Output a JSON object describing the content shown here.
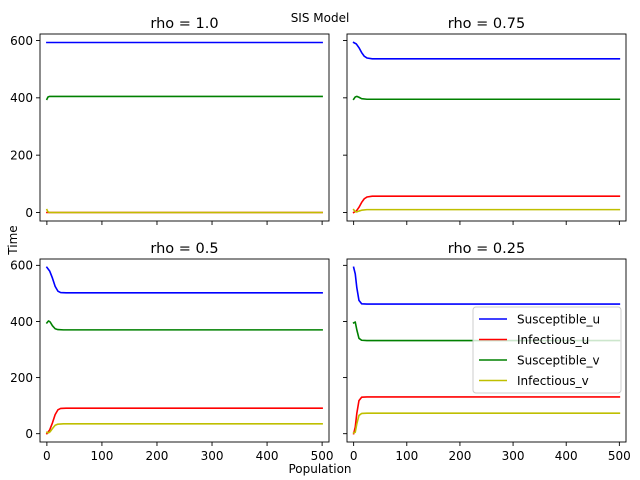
{
  "figure": {
    "suptitle": "SIS Model",
    "xlabel": "Population",
    "ylabel": "Time"
  },
  "chart_data": {
    "type": "line",
    "xlim": [
      0,
      500
    ],
    "ylim": [
      0,
      600
    ],
    "xticks": [
      0,
      100,
      200,
      300,
      400,
      500
    ],
    "yticks": [
      0,
      200,
      400,
      600
    ],
    "grid": false,
    "legend": {
      "placement": "lower-right of bottom-right panel",
      "entries": [
        "Susceptible_u",
        "Infectious_u",
        "Susceptible_v",
        "Infectious_v"
      ]
    },
    "colors": {
      "Susceptible_u": "#0000ff",
      "Infectious_u": "#ff0000",
      "Susceptible_v": "#008000",
      "Infectious_v": "#bfbf00"
    },
    "panels": [
      {
        "title": "rho = 1.0",
        "series": [
          {
            "name": "Susceptible_u",
            "x": [
              0,
              2,
              500
            ],
            "y": [
              593,
              593,
              593
            ]
          },
          {
            "name": "Infectious_u",
            "x": [
              0,
              500
            ],
            "y": [
              0,
              0
            ]
          },
          {
            "name": "Susceptible_v",
            "x": [
              0,
              2,
              5,
              500
            ],
            "y": [
              395,
              403,
              405,
              405
            ]
          },
          {
            "name": "Infectious_v",
            "x": [
              0,
              2,
              5,
              500
            ],
            "y": [
              10,
              2,
              0,
              0
            ]
          }
        ]
      },
      {
        "title": "rho = 0.75",
        "series": [
          {
            "name": "Susceptible_u",
            "x": [
              0,
              5,
              10,
              15,
              20,
              25,
              35,
              500
            ],
            "y": [
              593,
              588,
              575,
              558,
              545,
              539,
              536,
              536
            ]
          },
          {
            "name": "Infectious_u",
            "x": [
              0,
              5,
              10,
              15,
              20,
              25,
              35,
              500
            ],
            "y": [
              0,
              5,
              18,
              35,
              48,
              54,
              57,
              57
            ]
          },
          {
            "name": "Susceptible_v",
            "x": [
              0,
              3,
              6,
              10,
              15,
              25,
              500
            ],
            "y": [
              395,
              403,
              405,
              402,
              397,
              395,
              395
            ]
          },
          {
            "name": "Infectious_v",
            "x": [
              0,
              3,
              6,
              10,
              15,
              25,
              500
            ],
            "y": [
              10,
              3,
              2,
              5,
              8,
              10,
              10
            ]
          }
        ]
      },
      {
        "title": "rho = 0.5",
        "series": [
          {
            "name": "Susceptible_u",
            "x": [
              0,
              5,
              10,
              15,
              20,
              25,
              35,
              500
            ],
            "y": [
              593,
              580,
              555,
              525,
              508,
              503,
              502,
              502
            ]
          },
          {
            "name": "Infectious_u",
            "x": [
              0,
              5,
              10,
              15,
              20,
              25,
              35,
              500
            ],
            "y": [
              0,
              13,
              38,
              68,
              85,
              90,
              91,
              91
            ]
          },
          {
            "name": "Susceptible_v",
            "x": [
              0,
              3,
              6,
              10,
              15,
              20,
              30,
              500
            ],
            "y": [
              395,
              402,
              398,
              385,
              374,
              371,
              370,
              370
            ]
          },
          {
            "name": "Infectious_v",
            "x": [
              0,
              3,
              6,
              10,
              15,
              20,
              30,
              500
            ],
            "y": [
              5,
              3,
              7,
              18,
              30,
              34,
              35,
              35
            ]
          }
        ]
      },
      {
        "title": "rho = 0.25",
        "series": [
          {
            "name": "Susceptible_u",
            "x": [
              0,
              3,
              6,
              10,
              15,
              25,
              500
            ],
            "y": [
              593,
              570,
              520,
              475,
              463,
              462,
              462
            ]
          },
          {
            "name": "Infectious_u",
            "x": [
              0,
              3,
              6,
              10,
              15,
              25,
              500
            ],
            "y": [
              0,
              23,
              73,
              118,
              130,
              131,
              131
            ]
          },
          {
            "name": "Susceptible_v",
            "x": [
              0,
              3,
              6,
              10,
              15,
              25,
              500
            ],
            "y": [
              395,
              398,
              370,
              340,
              333,
              332,
              332
            ]
          },
          {
            "name": "Infectious_v",
            "x": [
              0,
              3,
              6,
              10,
              15,
              25,
              500
            ],
            "y": [
              3,
              5,
              35,
              65,
              72,
              73,
              73
            ]
          }
        ]
      }
    ]
  }
}
